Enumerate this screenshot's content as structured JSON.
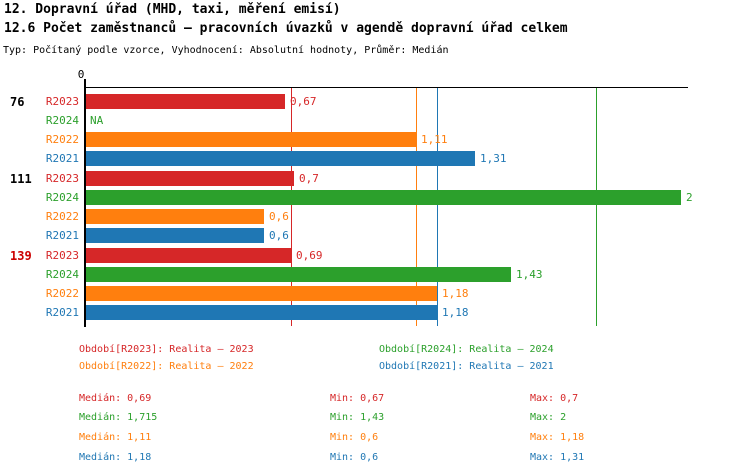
{
  "header": {
    "title_line1": "12. Dopravní úřad (MHD, taxi, měření emisí)",
    "title_line2": "12.6 Počet zaměstnanců – pracovních úvazků v agendě dopravní úřad celkem",
    "subtitle": "Typ: Počítaný podle vzorce, Vyhodnocení: Absolutní hodnoty, Průměr: Medián"
  },
  "colors": {
    "series": {
      "R2023": "#d62728",
      "R2024": "#2ca02c",
      "R2022": "#ff7f0e",
      "R2021": "#1f77b4"
    },
    "highlight_group_label": "#cc0000",
    "text": "#000000",
    "axis": "#000000",
    "background": "#ffffff"
  },
  "chart_data": {
    "type": "bar",
    "orientation": "horizontal",
    "title": "12.6 Počet zaměstnanců – pracovních úvazků v agendě dopravní úřad celkem",
    "xlabel": "",
    "ylabel": "",
    "x_axis": {
      "min": 0,
      "max": 2.02,
      "tick_labels": [
        "0"
      ],
      "grid": false
    },
    "series_order": [
      "R2023",
      "R2024",
      "R2022",
      "R2021"
    ],
    "groups": [
      {
        "label": "76",
        "highlighted": false,
        "bars": [
          {
            "series": "R2023",
            "value": 0.67,
            "value_label": "0,67"
          },
          {
            "series": "R2024",
            "value": null,
            "value_label": "NA"
          },
          {
            "series": "R2022",
            "value": 1.11,
            "value_label": "1,11"
          },
          {
            "series": "R2021",
            "value": 1.31,
            "value_label": "1,31"
          }
        ]
      },
      {
        "label": "111",
        "highlighted": false,
        "bars": [
          {
            "series": "R2023",
            "value": 0.7,
            "value_label": "0,7"
          },
          {
            "series": "R2024",
            "value": 2,
            "value_label": "2"
          },
          {
            "series": "R2022",
            "value": 0.6,
            "value_label": "0,6"
          },
          {
            "series": "R2021",
            "value": 0.6,
            "value_label": "0,6"
          }
        ]
      },
      {
        "label": "139",
        "highlighted": true,
        "bars": [
          {
            "series": "R2023",
            "value": 0.69,
            "value_label": "0,69"
          },
          {
            "series": "R2024",
            "value": 1.43,
            "value_label": "1,43"
          },
          {
            "series": "R2022",
            "value": 1.18,
            "value_label": "1,18"
          },
          {
            "series": "R2021",
            "value": 1.18,
            "value_label": "1,18"
          }
        ]
      }
    ],
    "median_lines": [
      {
        "series": "R2023",
        "value": 0.69
      },
      {
        "series": "R2024",
        "value": 1.715
      },
      {
        "series": "R2022",
        "value": 1.11
      },
      {
        "series": "R2021",
        "value": 1.18
      }
    ],
    "legend_position": "below"
  },
  "legend": {
    "items": [
      {
        "series": "R2023",
        "label": "Období[R2023]: Realita – 2023"
      },
      {
        "series": "R2024",
        "label": "Období[R2024]: Realita – 2024"
      },
      {
        "series": "R2022",
        "label": "Období[R2022]: Realita – 2022"
      },
      {
        "series": "R2021",
        "label": "Období[R2021]: Realita – 2021"
      }
    ]
  },
  "stats": {
    "rows": [
      {
        "series": "R2023",
        "median": "Medián: 0,69",
        "min": "Min: 0,67",
        "max": "Max: 0,7"
      },
      {
        "series": "R2024",
        "median": "Medián: 1,715",
        "min": "Min: 1,43",
        "max": "Max: 2"
      },
      {
        "series": "R2022",
        "median": "Medián: 1,11",
        "min": "Min: 0,6",
        "max": "Max: 1,18"
      },
      {
        "series": "R2021",
        "median": "Medián: 1,18",
        "min": "Min: 0,6",
        "max": "Max: 1,31"
      }
    ]
  }
}
